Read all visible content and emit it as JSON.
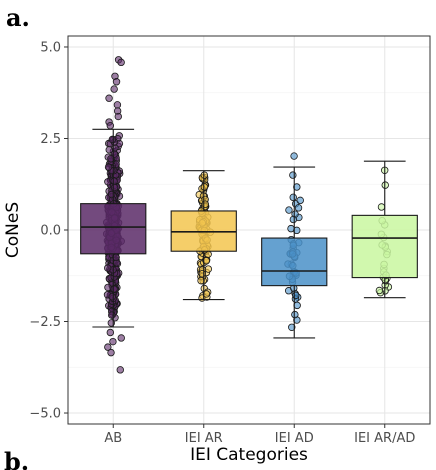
{
  "chart_data": {
    "type": "box",
    "panel_label": "a.",
    "next_panel_label": "b.",
    "xlabel": "IEI Categories",
    "ylabel": "CoNeS",
    "ylim": [
      -5.3,
      5.3
    ],
    "yticks": [
      -5.0,
      -2.5,
      0.0,
      2.5,
      5.0
    ],
    "ytick_labels": [
      "−5.0",
      "−2.5",
      "0.0",
      "2.5",
      "5.0"
    ],
    "grid": true,
    "legend": "none",
    "categories": [
      "AB",
      "IEI AR",
      "IEI AD",
      "IEI AR/AD"
    ],
    "boxes": [
      {
        "category": "AB",
        "color": "#5b2a67",
        "whisker_low": -2.65,
        "q1": -0.65,
        "median": 0.08,
        "q3": 0.72,
        "whisker_high": 2.75
      },
      {
        "category": "IEI AR",
        "color": "#f3c64f",
        "whisker_low": -1.9,
        "q1": -0.58,
        "median": -0.05,
        "q3": 0.52,
        "whisker_high": 1.62
      },
      {
        "category": "IEI AD",
        "color": "#4a90c8",
        "whisker_low": -2.95,
        "q1": -1.52,
        "median": -1.12,
        "q3": -0.22,
        "whisker_high": 1.72
      },
      {
        "category": "IEI AR/AD",
        "color": "#c9f7a0",
        "whisker_low": -1.85,
        "q1": -1.3,
        "median": -0.22,
        "q3": 0.4,
        "whisker_high": 1.88
      }
    ],
    "outliers": [
      {
        "category": "AB",
        "values": [
          4.65,
          4.58,
          4.2,
          4.05,
          3.85,
          3.6,
          3.42,
          3.25,
          3.1,
          2.95,
          2.85,
          -2.8,
          -2.95,
          -3.05,
          -3.2,
          -3.35,
          -3.82
        ]
      },
      {
        "category": "IEI AD",
        "values": [
          2.02
        ]
      }
    ],
    "points": [
      {
        "category": "AB",
        "count": 520,
        "low": -2.6,
        "high": 2.72
      },
      {
        "category": "IEI AR",
        "count": 110,
        "low": -1.9,
        "high": 1.62
      },
      {
        "category": "IEI AD",
        "count": 45,
        "low": -2.95,
        "high": 1.72
      },
      {
        "category": "IEI AR/AD",
        "count": 25,
        "low": -1.85,
        "high": 1.88
      }
    ]
  }
}
